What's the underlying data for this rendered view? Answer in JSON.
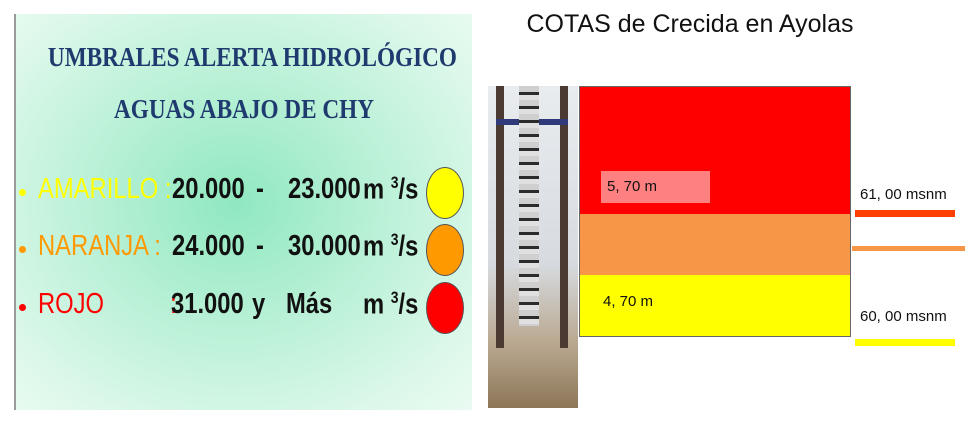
{
  "left_panel": {
    "title_line1": "UMBRALES ALERTA HIDROLÓGICO",
    "title_line2": "AGUAS ABAJO DE CHY",
    "rows": [
      {
        "level": "AMARILLO :",
        "from": "20.000",
        "sep": "-",
        "to": "23.000",
        "unit": "m",
        "unit_exp": "3",
        "unit_tail": "/s",
        "color": "#ffff00"
      },
      {
        "level": "NARANJA   :",
        "from": "24.000",
        "sep": "-",
        "to": "30.000",
        "unit": "m",
        "unit_exp": "3",
        "unit_tail": "/s",
        "color": "#ff9900"
      },
      {
        "level": "ROJO          :",
        "from": "31.000",
        "sep": "y",
        "to": "Más",
        "unit": "m",
        "unit_exp": "3",
        "unit_tail": "/s",
        "color": "#ff0000"
      }
    ]
  },
  "right_panel": {
    "title": "COTAS de Crecida en Ayolas",
    "red_label": "5, 70 m",
    "yellow_label": "4, 70 m",
    "upper_level": "61, 00 msnm",
    "lower_level": "60, 00 msnm",
    "colors": {
      "red": "#ff0000",
      "orange": "#f79646",
      "yellow": "#ffff00",
      "label_box": "#ff8080"
    }
  }
}
